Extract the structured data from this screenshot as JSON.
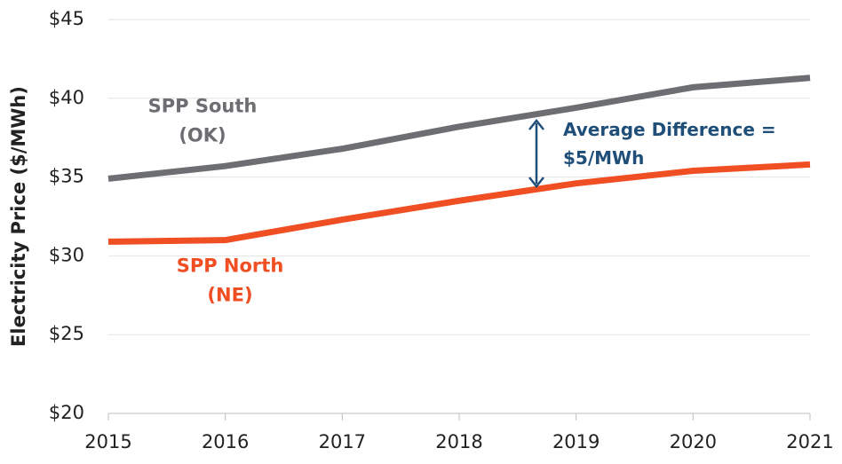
{
  "chart_data": {
    "type": "line",
    "y_label": "Electricity Price ($/MWh)",
    "categories": [
      "2015",
      "2016",
      "2017",
      "2018",
      "2019",
      "2020",
      "2021"
    ],
    "series": [
      {
        "name": "SPP South\n(OK)",
        "color": "#6d6e71",
        "values": [
          34.9,
          35.7,
          36.8,
          38.2,
          39.4,
          40.7,
          41.3
        ]
      },
      {
        "name": "SPP North\n(NE)",
        "color": "#f04e23",
        "values": [
          30.9,
          31.0,
          32.3,
          33.5,
          34.6,
          35.4,
          35.8
        ]
      }
    ],
    "annotation": "Average Difference =\n$5/MWh",
    "annotation_color": "#1f4e79",
    "ylim": [
      20,
      45
    ],
    "yticks": [
      {
        "value": 20,
        "label": "$20"
      },
      {
        "value": 25,
        "label": "$25"
      },
      {
        "value": 30,
        "label": "$30"
      },
      {
        "value": 35,
        "label": "$35"
      },
      {
        "value": 40,
        "label": "$40"
      },
      {
        "value": 45,
        "label": "$45"
      }
    ],
    "grid": true
  }
}
